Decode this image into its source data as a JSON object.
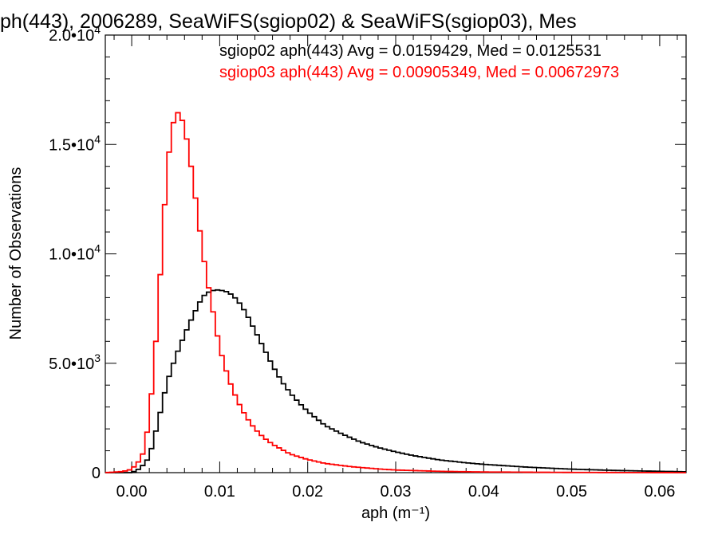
{
  "chart_data": {
    "type": "line",
    "title": "ph(443), 2006289, SeaWiFS(sgiop02) & SeaWiFS(sgiop03), Mes",
    "xlabel": "aph (m⁻¹)",
    "ylabel": "Number of Observations",
    "xlim": [
      -0.003,
      0.063
    ],
    "ylim": [
      0,
      20000
    ],
    "x_ticks": [
      0.0,
      0.01,
      0.02,
      0.03,
      0.04,
      0.05,
      0.06
    ],
    "x_tick_labels": [
      "0.00",
      "0.01",
      "0.02",
      "0.03",
      "0.04",
      "0.05",
      "0.06"
    ],
    "y_ticks": [
      0,
      5000,
      10000,
      15000,
      20000
    ],
    "y_tick_labels": [
      {
        "mantissa": "0",
        "exponent": ""
      },
      {
        "mantissa": "5.0•10",
        "exponent": "3"
      },
      {
        "mantissa": "1.0•10",
        "exponent": "4"
      },
      {
        "mantissa": "1.5•10",
        "exponent": "4"
      },
      {
        "mantissa": "2.0•10",
        "exponent": "4"
      }
    ],
    "grid": false,
    "legend_position": "top-right",
    "series": [
      {
        "name": "sgiop02 aph(443) Avg = 0.0159429, Med = 0.0125531",
        "color": "#000000",
        "x": [
          -0.003,
          0.0,
          0.001,
          0.002,
          0.003,
          0.004,
          0.005,
          0.006,
          0.007,
          0.0075,
          0.008,
          0.0085,
          0.009,
          0.0095,
          0.01,
          0.011,
          0.012,
          0.013,
          0.014,
          0.015,
          0.016,
          0.017,
          0.018,
          0.019,
          0.02,
          0.022,
          0.024,
          0.026,
          0.028,
          0.03,
          0.032,
          0.035,
          0.038,
          0.04,
          0.045,
          0.05,
          0.055,
          0.06,
          0.063
        ],
        "y": [
          0,
          0,
          200,
          700,
          2300,
          4100,
          5300,
          6300,
          7200,
          7600,
          8000,
          8200,
          8300,
          8350,
          8350,
          8250,
          7900,
          7300,
          6500,
          5700,
          4900,
          4200,
          3650,
          3200,
          2800,
          2150,
          1750,
          1400,
          1150,
          950,
          780,
          580,
          450,
          380,
          250,
          160,
          100,
          60,
          40
        ]
      },
      {
        "name": "sgiop03 aph(443) Avg = 0.00905349, Med = 0.00672973",
        "color": "#ff0000",
        "x": [
          -0.003,
          -0.001,
          0.0,
          0.001,
          0.0015,
          0.002,
          0.0025,
          0.003,
          0.0035,
          0.004,
          0.0045,
          0.005,
          0.0055,
          0.006,
          0.0065,
          0.007,
          0.0075,
          0.008,
          0.0085,
          0.009,
          0.0095,
          0.01,
          0.011,
          0.012,
          0.013,
          0.014,
          0.015,
          0.016,
          0.018,
          0.02,
          0.022,
          0.025,
          0.028,
          0.03,
          0.035,
          0.04,
          0.05,
          0.063
        ],
        "y": [
          0,
          50,
          150,
          600,
          1100,
          2600,
          4600,
          7400,
          10700,
          13800,
          15500,
          16500,
          16400,
          15800,
          14700,
          13300,
          11800,
          10300,
          9000,
          7900,
          6800,
          5700,
          4300,
          3300,
          2550,
          2000,
          1600,
          1300,
          850,
          600,
          420,
          270,
          170,
          120,
          60,
          30,
          10,
          0
        ]
      }
    ]
  }
}
